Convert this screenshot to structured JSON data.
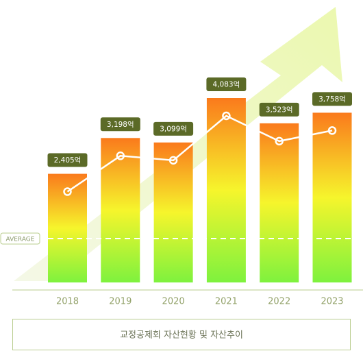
{
  "chart_data": {
    "type": "bar",
    "caption": "교정공제회 자산현황 및 자산추이",
    "average_label": "AVERAGE",
    "categories": [
      "2018",
      "2019",
      "2020",
      "2021",
      "2022",
      "2023"
    ],
    "values": [
      2405,
      3198,
      3099,
      4083,
      3523,
      3758
    ],
    "value_labels": [
      "2,405억",
      "3,198억",
      "3,099억",
      "4,083억",
      "3,523억",
      "3,758억"
    ],
    "colors": {
      "top": "#fa7a1c",
      "middle": "#f6f52c",
      "bottom": "#7ef23e",
      "label_box": "#5b6a27",
      "line": "#ffffff"
    }
  }
}
